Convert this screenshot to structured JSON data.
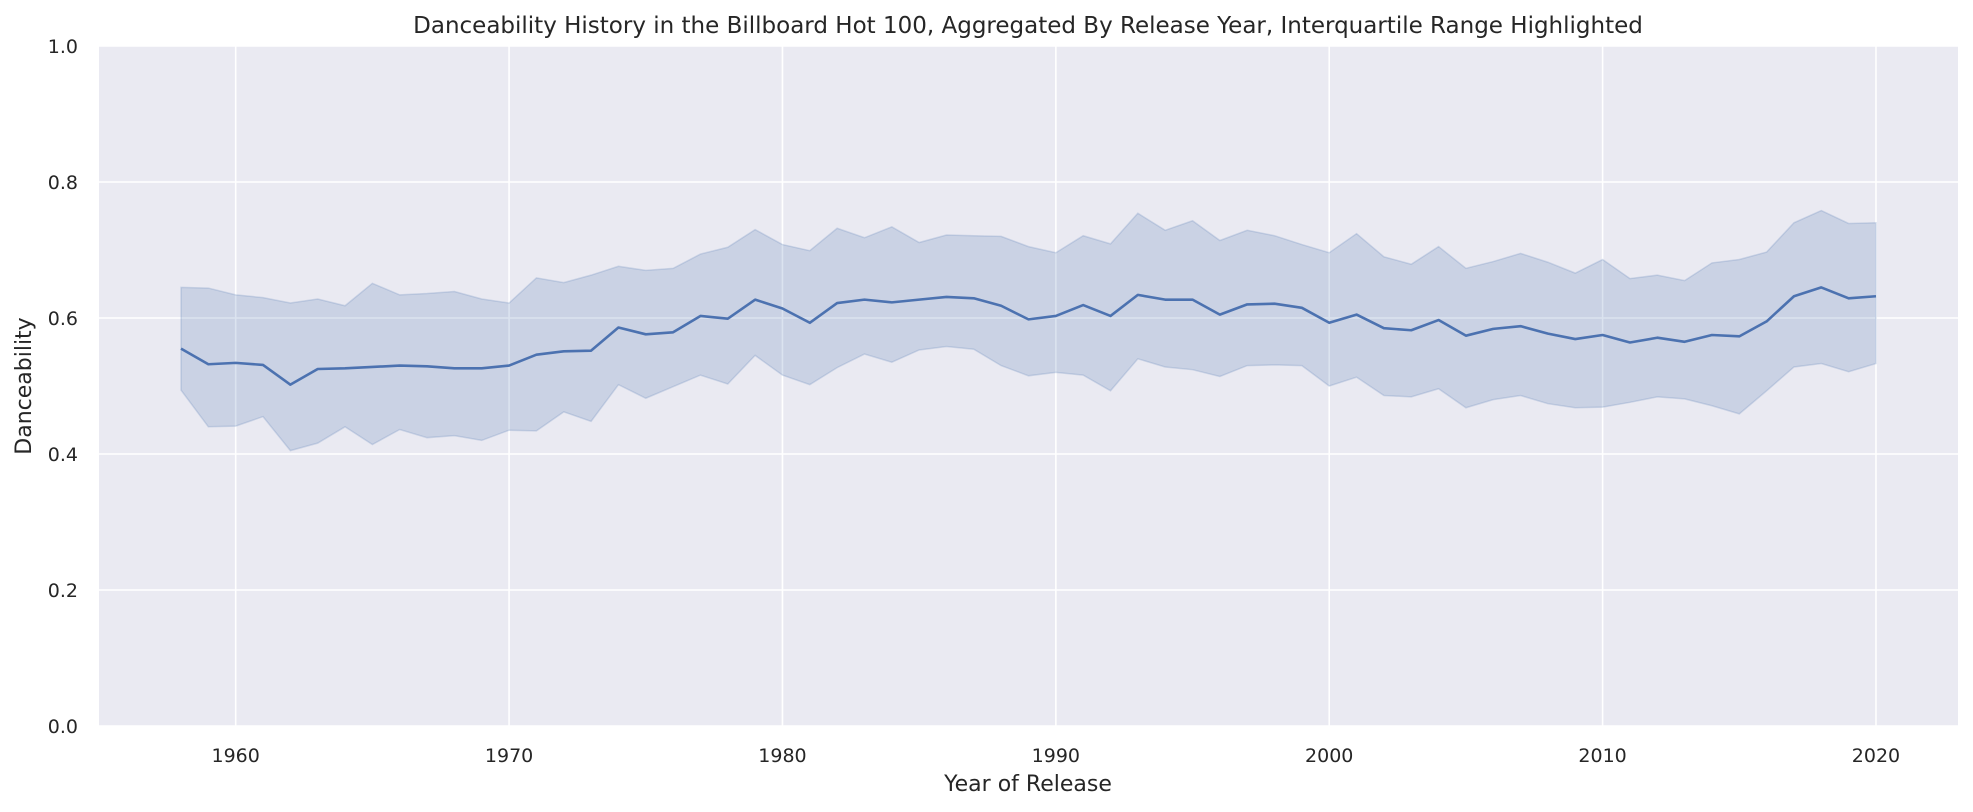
{
  "chart_data": {
    "type": "line",
    "title": "Danceability History in the Billboard Hot 100, Aggregated By Release Year, Interquartile Range Highlighted",
    "xlabel": "Year of Release",
    "ylabel": "Danceability",
    "xlim": [
      1955,
      2023
    ],
    "ylim": [
      0,
      1
    ],
    "xticks": [
      1960,
      1970,
      1980,
      1990,
      2000,
      2010,
      2020
    ],
    "yticks": [
      0.0,
      0.2,
      0.4,
      0.6,
      0.8,
      1.0
    ],
    "ytick_labels": [
      "0.0",
      "0.2",
      "0.4",
      "0.6",
      "0.8",
      "1.0"
    ],
    "grid": true,
    "colors": {
      "line": "#4c72b0",
      "band": "#4c72b0",
      "background": "#eaeaf2",
      "grid": "#ffffff"
    },
    "x": [
      1958,
      1959,
      1960,
      1961,
      1962,
      1963,
      1964,
      1965,
      1966,
      1967,
      1968,
      1969,
      1970,
      1971,
      1972,
      1973,
      1974,
      1975,
      1976,
      1977,
      1978,
      1979,
      1980,
      1981,
      1982,
      1983,
      1984,
      1985,
      1986,
      1987,
      1988,
      1989,
      1990,
      1991,
      1992,
      1993,
      1994,
      1995,
      1996,
      1997,
      1998,
      1999,
      2000,
      2001,
      2002,
      2003,
      2004,
      2005,
      2006,
      2007,
      2008,
      2009,
      2010,
      2011,
      2012,
      2013,
      2014,
      2015,
      2016,
      2017,
      2018,
      2019,
      2020
    ],
    "median": [
      0.555,
      0.532,
      0.534,
      0.531,
      0.502,
      0.525,
      0.526,
      0.528,
      0.53,
      0.529,
      0.526,
      0.526,
      0.53,
      0.546,
      0.551,
      0.552,
      0.586,
      0.576,
      0.579,
      0.603,
      0.599,
      0.627,
      0.614,
      0.593,
      0.622,
      0.627,
      0.623,
      0.627,
      0.631,
      0.629,
      0.618,
      0.598,
      0.603,
      0.619,
      0.603,
      0.634,
      0.627,
      0.627,
      0.605,
      0.62,
      0.621,
      0.615,
      0.593,
      0.605,
      0.585,
      0.582,
      0.597,
      0.574,
      0.584,
      0.588,
      0.577,
      0.569,
      0.575,
      0.564,
      0.571,
      0.565,
      0.575,
      0.573,
      0.595,
      0.632,
      0.645,
      0.629,
      0.632
    ],
    "q1": [
      0.494,
      0.44,
      0.441,
      0.455,
      0.405,
      0.416,
      0.44,
      0.414,
      0.436,
      0.424,
      0.427,
      0.42,
      0.435,
      0.434,
      0.462,
      0.448,
      0.502,
      0.482,
      0.499,
      0.516,
      0.503,
      0.545,
      0.516,
      0.502,
      0.527,
      0.547,
      0.535,
      0.553,
      0.558,
      0.554,
      0.53,
      0.515,
      0.52,
      0.516,
      0.493,
      0.54,
      0.528,
      0.524,
      0.514,
      0.53,
      0.531,
      0.53,
      0.5,
      0.513,
      0.486,
      0.484,
      0.496,
      0.468,
      0.48,
      0.486,
      0.474,
      0.468,
      0.469,
      0.476,
      0.484,
      0.481,
      0.471,
      0.459,
      0.493,
      0.528,
      0.533,
      0.521,
      0.533
    ],
    "q3": [
      0.645,
      0.644,
      0.634,
      0.63,
      0.622,
      0.628,
      0.618,
      0.651,
      0.634,
      0.636,
      0.639,
      0.628,
      0.622,
      0.659,
      0.652,
      0.663,
      0.676,
      0.67,
      0.673,
      0.694,
      0.704,
      0.73,
      0.708,
      0.699,
      0.732,
      0.718,
      0.734,
      0.711,
      0.722,
      0.721,
      0.72,
      0.705,
      0.696,
      0.721,
      0.709,
      0.754,
      0.729,
      0.743,
      0.714,
      0.729,
      0.721,
      0.708,
      0.696,
      0.724,
      0.69,
      0.679,
      0.705,
      0.673,
      0.683,
      0.695,
      0.682,
      0.666,
      0.686,
      0.658,
      0.663,
      0.655,
      0.681,
      0.686,
      0.697,
      0.74,
      0.758,
      0.739,
      0.74
    ]
  }
}
